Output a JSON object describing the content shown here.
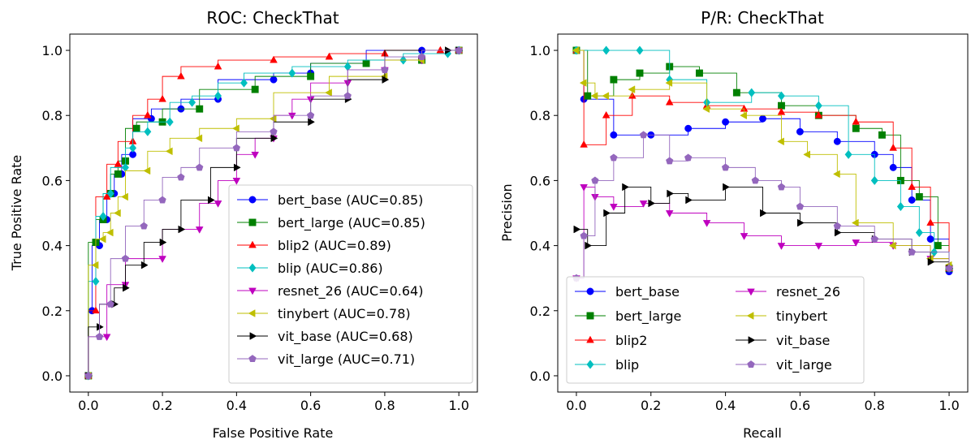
{
  "chart_data": [
    {
      "type": "line",
      "title": "ROC: CheckThat",
      "xlabel": "False Positive Rate",
      "ylabel": "True Positive Rate",
      "xlim": [
        -0.05,
        1.05
      ],
      "ylim": [
        -0.05,
        1.05
      ],
      "xticks": [
        "0.0",
        "0.2",
        "0.4",
        "0.6",
        "0.8",
        "1.0"
      ],
      "yticks": [
        "0.0",
        "0.2",
        "0.4",
        "0.6",
        "0.8",
        "1.0"
      ],
      "grid": false,
      "legend_position": "lower-right",
      "series": [
        {
          "name": "bert_base (AUC=0.85)",
          "color": "#0000ff",
          "marker": "circle",
          "x": [
            0,
            0.01,
            0.03,
            0.05,
            0.07,
            0.09,
            0.12,
            0.17,
            0.25,
            0.35,
            0.5,
            0.6,
            0.75,
            0.9,
            1.0
          ],
          "y": [
            0,
            0.2,
            0.4,
            0.48,
            0.56,
            0.62,
            0.68,
            0.79,
            0.82,
            0.85,
            0.91,
            0.93,
            0.96,
            1.0,
            1.0
          ]
        },
        {
          "name": "bert_large (AUC=0.85)",
          "color": "#008000",
          "marker": "square",
          "x": [
            0,
            0.02,
            0.04,
            0.06,
            0.08,
            0.1,
            0.13,
            0.2,
            0.3,
            0.45,
            0.6,
            0.75,
            0.9,
            1.0
          ],
          "y": [
            0,
            0.41,
            0.48,
            0.56,
            0.62,
            0.66,
            0.76,
            0.78,
            0.82,
            0.88,
            0.92,
            0.96,
            0.97,
            1.0
          ]
        },
        {
          "name": "blip2 (AUC=0.89)",
          "color": "#ff0000",
          "marker": "triangle-up",
          "x": [
            0,
            0.02,
            0.05,
            0.08,
            0.12,
            0.16,
            0.2,
            0.25,
            0.35,
            0.5,
            0.65,
            0.8,
            0.95,
            1.0
          ],
          "y": [
            0,
            0.2,
            0.55,
            0.65,
            0.72,
            0.8,
            0.85,
            0.92,
            0.95,
            0.97,
            0.98,
            0.99,
            1.0,
            1.0
          ]
        },
        {
          "name": "blip (AUC=0.86)",
          "color": "#00bfbf",
          "marker": "diamond",
          "x": [
            0,
            0.02,
            0.04,
            0.06,
            0.1,
            0.12,
            0.16,
            0.22,
            0.28,
            0.35,
            0.42,
            0.55,
            0.7,
            0.85,
            0.97,
            1.0
          ],
          "y": [
            0,
            0.29,
            0.49,
            0.56,
            0.64,
            0.7,
            0.75,
            0.78,
            0.84,
            0.86,
            0.9,
            0.93,
            0.95,
            0.97,
            0.99,
            1.0
          ]
        },
        {
          "name": "resnet_26 (AUC=0.64)",
          "color": "#bf00bf",
          "marker": "triangle-down",
          "x": [
            0,
            0.05,
            0.1,
            0.2,
            0.3,
            0.35,
            0.4,
            0.45,
            0.5,
            0.55,
            0.6,
            0.7,
            0.8,
            0.9,
            1.0
          ],
          "y": [
            0,
            0.12,
            0.28,
            0.36,
            0.45,
            0.53,
            0.6,
            0.68,
            0.73,
            0.8,
            0.85,
            0.9,
            0.94,
            0.97,
            1.0
          ]
        },
        {
          "name": "tinybert (AUC=0.78)",
          "color": "#bfbf00",
          "marker": "triangle-left",
          "x": [
            0,
            0.02,
            0.04,
            0.06,
            0.08,
            0.1,
            0.16,
            0.22,
            0.3,
            0.4,
            0.5,
            0.65,
            0.8,
            0.9,
            1.0
          ],
          "y": [
            0,
            0.34,
            0.42,
            0.44,
            0.5,
            0.55,
            0.63,
            0.69,
            0.73,
            0.76,
            0.79,
            0.87,
            0.92,
            0.97,
            1.0
          ]
        },
        {
          "name": "vit_base (AUC=0.68)",
          "color": "#000000",
          "marker": "triangle-right",
          "x": [
            0,
            0.03,
            0.07,
            0.1,
            0.15,
            0.2,
            0.25,
            0.33,
            0.4,
            0.5,
            0.6,
            0.7,
            0.8,
            0.97,
            1.0
          ],
          "y": [
            0,
            0.15,
            0.22,
            0.27,
            0.34,
            0.41,
            0.45,
            0.54,
            0.64,
            0.73,
            0.78,
            0.85,
            0.91,
            1.0,
            1.0
          ]
        },
        {
          "name": "vit_large (AUC=0.71)",
          "color": "#9467bd",
          "marker": "pentagon",
          "x": [
            0,
            0.03,
            0.06,
            0.1,
            0.15,
            0.2,
            0.25,
            0.3,
            0.4,
            0.5,
            0.6,
            0.7,
            0.8,
            0.9,
            1.0
          ],
          "y": [
            0,
            0.12,
            0.22,
            0.36,
            0.46,
            0.54,
            0.61,
            0.64,
            0.7,
            0.75,
            0.8,
            0.86,
            0.94,
            0.98,
            1.0
          ]
        }
      ]
    },
    {
      "type": "line",
      "title": "P/R: CheckThat",
      "xlabel": "Recall",
      "ylabel": "Precision",
      "xlim": [
        -0.05,
        1.05
      ],
      "ylim": [
        -0.05,
        1.05
      ],
      "xticks": [
        "0.0",
        "0.2",
        "0.4",
        "0.6",
        "0.8",
        "1.0"
      ],
      "yticks": [
        "0.0",
        "0.2",
        "0.4",
        "0.6",
        "0.8",
        "1.0"
      ],
      "grid": false,
      "legend_position": "lower-left",
      "legend_columns": 2,
      "series": [
        {
          "name": "bert_base",
          "color": "#0000ff",
          "marker": "circle",
          "x": [
            0.0,
            0.02,
            0.1,
            0.2,
            0.3,
            0.4,
            0.5,
            0.6,
            0.7,
            0.8,
            0.85,
            0.9,
            0.95,
            1.0
          ],
          "y": [
            1.0,
            0.85,
            0.74,
            0.74,
            0.76,
            0.78,
            0.79,
            0.75,
            0.72,
            0.68,
            0.64,
            0.54,
            0.42,
            0.32
          ]
        },
        {
          "name": "bert_large",
          "color": "#008000",
          "marker": "square",
          "x": [
            0.0,
            0.03,
            0.1,
            0.17,
            0.25,
            0.33,
            0.43,
            0.55,
            0.65,
            0.75,
            0.82,
            0.87,
            0.92,
            0.97,
            1.0
          ],
          "y": [
            1.0,
            0.86,
            0.91,
            0.93,
            0.95,
            0.93,
            0.87,
            0.83,
            0.8,
            0.76,
            0.74,
            0.6,
            0.55,
            0.4,
            0.33
          ]
        },
        {
          "name": "blip2",
          "color": "#ff0000",
          "marker": "triangle-up",
          "x": [
            0.0,
            0.02,
            0.08,
            0.15,
            0.25,
            0.35,
            0.45,
            0.55,
            0.65,
            0.75,
            0.85,
            0.9,
            0.95,
            1.0
          ],
          "y": [
            1.0,
            0.71,
            0.8,
            0.86,
            0.84,
            0.83,
            0.82,
            0.81,
            0.8,
            0.78,
            0.7,
            0.58,
            0.47,
            0.33
          ]
        },
        {
          "name": "blip",
          "color": "#00bfbf",
          "marker": "diamond",
          "x": [
            0.0,
            0.08,
            0.17,
            0.25,
            0.35,
            0.47,
            0.55,
            0.65,
            0.73,
            0.8,
            0.87,
            0.92,
            0.96,
            1.0
          ],
          "y": [
            1.0,
            1.0,
            1.0,
            0.91,
            0.84,
            0.87,
            0.86,
            0.83,
            0.68,
            0.6,
            0.52,
            0.44,
            0.38,
            0.33
          ]
        },
        {
          "name": "resnet_26",
          "color": "#bf00bf",
          "marker": "triangle-down",
          "x": [
            0.0,
            0.02,
            0.05,
            0.1,
            0.18,
            0.25,
            0.35,
            0.45,
            0.55,
            0.65,
            0.75,
            0.85,
            0.95,
            1.0
          ],
          "y": [
            0.3,
            0.58,
            0.55,
            0.52,
            0.53,
            0.5,
            0.47,
            0.43,
            0.4,
            0.4,
            0.41,
            0.4,
            0.36,
            0.33
          ]
        },
        {
          "name": "tinybert",
          "color": "#bfbf00",
          "marker": "triangle-left",
          "x": [
            0.0,
            0.02,
            0.05,
            0.08,
            0.15,
            0.25,
            0.35,
            0.45,
            0.55,
            0.62,
            0.7,
            0.75,
            0.85,
            0.95,
            1.0
          ],
          "y": [
            1.0,
            0.9,
            0.86,
            0.86,
            0.88,
            0.9,
            0.82,
            0.8,
            0.72,
            0.68,
            0.62,
            0.47,
            0.4,
            0.36,
            0.34
          ]
        },
        {
          "name": "vit_base",
          "color": "#000000",
          "marker": "triangle-right",
          "x": [
            0.0,
            0.03,
            0.08,
            0.13,
            0.2,
            0.25,
            0.3,
            0.4,
            0.5,
            0.6,
            0.7,
            0.8,
            0.9,
            0.95,
            1.0
          ],
          "y": [
            0.45,
            0.4,
            0.5,
            0.58,
            0.53,
            0.56,
            0.54,
            0.58,
            0.5,
            0.47,
            0.44,
            0.42,
            0.38,
            0.35,
            0.33
          ]
        },
        {
          "name": "vit_large",
          "color": "#9467bd",
          "marker": "pentagon",
          "x": [
            0.0,
            0.02,
            0.05,
            0.1,
            0.18,
            0.25,
            0.3,
            0.4,
            0.48,
            0.55,
            0.6,
            0.7,
            0.8,
            0.9,
            1.0
          ],
          "y": [
            0.3,
            0.43,
            0.6,
            0.67,
            0.74,
            0.66,
            0.67,
            0.64,
            0.6,
            0.58,
            0.52,
            0.46,
            0.42,
            0.38,
            0.33
          ]
        }
      ]
    }
  ]
}
